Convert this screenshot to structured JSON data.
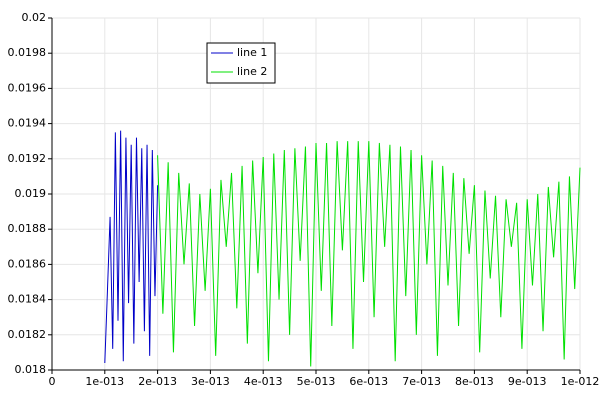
{
  "chart_data": {
    "type": "line",
    "series": [
      {
        "name": "line 1",
        "color": "#0000c8",
        "x": [
          1e-13,
          1.05e-13,
          1.1e-13,
          1.15e-13,
          1.2e-13,
          1.25e-13,
          1.3e-13,
          1.35e-13,
          1.4e-13,
          1.45e-13,
          1.5e-13,
          1.55e-13,
          1.6e-13,
          1.65e-13,
          1.7e-13,
          1.75e-13,
          1.8e-13,
          1.85e-13,
          1.9e-13,
          1.95e-13,
          2e-13
        ],
        "values": [
          0.01804,
          0.01845,
          0.01887,
          0.01812,
          0.01935,
          0.01828,
          0.01936,
          0.01805,
          0.01932,
          0.01838,
          0.01928,
          0.01815,
          0.01932,
          0.0185,
          0.01926,
          0.01822,
          0.01928,
          0.01808,
          0.01925,
          0.01842,
          0.01905
        ]
      },
      {
        "name": "line 2",
        "color": "#00e000",
        "x": [
          2e-13,
          2.1e-13,
          2.2e-13,
          2.3e-13,
          2.4e-13,
          2.5e-13,
          2.6e-13,
          2.7e-13,
          2.8e-13,
          2.9e-13,
          3e-13,
          3.1e-13,
          3.2e-13,
          3.3e-13,
          3.4e-13,
          3.5e-13,
          3.6e-13,
          3.7e-13,
          3.8e-13,
          3.9e-13,
          4e-13,
          4.1e-13,
          4.2e-13,
          4.3e-13,
          4.4e-13,
          4.5e-13,
          4.6e-13,
          4.7e-13,
          4.8e-13,
          4.9e-13,
          5e-13,
          5.1e-13,
          5.2e-13,
          5.3e-13,
          5.4e-13,
          5.5e-13,
          5.6e-13,
          5.7e-13,
          5.8e-13,
          5.9e-13,
          6e-13,
          6.1e-13,
          6.2e-13,
          6.3e-13,
          6.4e-13,
          6.5e-13,
          6.6e-13,
          6.7e-13,
          6.8e-13,
          6.9e-13,
          7e-13,
          7.1e-13,
          7.2e-13,
          7.3e-13,
          7.4e-13,
          7.5e-13,
          7.6e-13,
          7.7e-13,
          7.8e-13,
          7.9e-13,
          8e-13,
          8.1e-13,
          8.2e-13,
          8.3e-13,
          8.4e-13,
          8.5e-13,
          8.6e-13,
          8.7e-13,
          8.8e-13,
          8.9e-13,
          9e-13,
          9.1e-13,
          9.2e-13,
          9.3e-13,
          9.4e-13,
          9.5e-13,
          9.6e-13,
          9.7e-13,
          9.8e-13,
          9.9e-13,
          1e-12
        ],
        "values": [
          0.01922,
          0.01832,
          0.01918,
          0.0181,
          0.01912,
          0.0186,
          0.01906,
          0.01825,
          0.019,
          0.01845,
          0.01903,
          0.01808,
          0.01908,
          0.0187,
          0.01912,
          0.01835,
          0.01916,
          0.01815,
          0.01919,
          0.01855,
          0.01921,
          0.01805,
          0.01923,
          0.0184,
          0.01925,
          0.0182,
          0.01926,
          0.01862,
          0.01927,
          0.01802,
          0.01929,
          0.01845,
          0.01929,
          0.01825,
          0.0193,
          0.01868,
          0.0193,
          0.01812,
          0.0193,
          0.0185,
          0.0193,
          0.0183,
          0.01929,
          0.0187,
          0.01928,
          0.01805,
          0.01927,
          0.01842,
          0.01925,
          0.0182,
          0.01922,
          0.0186,
          0.01919,
          0.01808,
          0.01916,
          0.01848,
          0.01912,
          0.01825,
          0.01909,
          0.01866,
          0.01905,
          0.0181,
          0.01902,
          0.01852,
          0.01899,
          0.0183,
          0.01897,
          0.0187,
          0.01895,
          0.01812,
          0.01897,
          0.01848,
          0.019,
          0.01822,
          0.01904,
          0.01864,
          0.01907,
          0.01806,
          0.0191,
          0.01846,
          0.01915
        ]
      }
    ],
    "xlim": [
      0,
      1e-12
    ],
    "xticks": [
      0,
      {
        "value": 1e-13,
        "label": "1e-013"
      },
      {
        "value": 2e-13,
        "label": "2e-013"
      },
      {
        "value": 3e-13,
        "label": "3e-013"
      },
      {
        "value": 4e-13,
        "label": "4e-013"
      },
      {
        "value": 5e-13,
        "label": "5e-013"
      },
      {
        "value": 6e-13,
        "label": "6e-013"
      },
      {
        "value": 7e-13,
        "label": "7e-013"
      },
      {
        "value": 8e-13,
        "label": "8e-013"
      },
      {
        "value": 9e-13,
        "label": "9e-013"
      },
      {
        "value": 1e-12,
        "label": "1e-012"
      }
    ],
    "ylim": [
      0.018,
      0.02
    ],
    "yticks": [
      0.018,
      0.0182,
      0.0184,
      0.0186,
      0.0188,
      0.019,
      0.0192,
      0.0194,
      0.0196,
      0.0198,
      0.02
    ],
    "grid": true,
    "legend": "top"
  }
}
